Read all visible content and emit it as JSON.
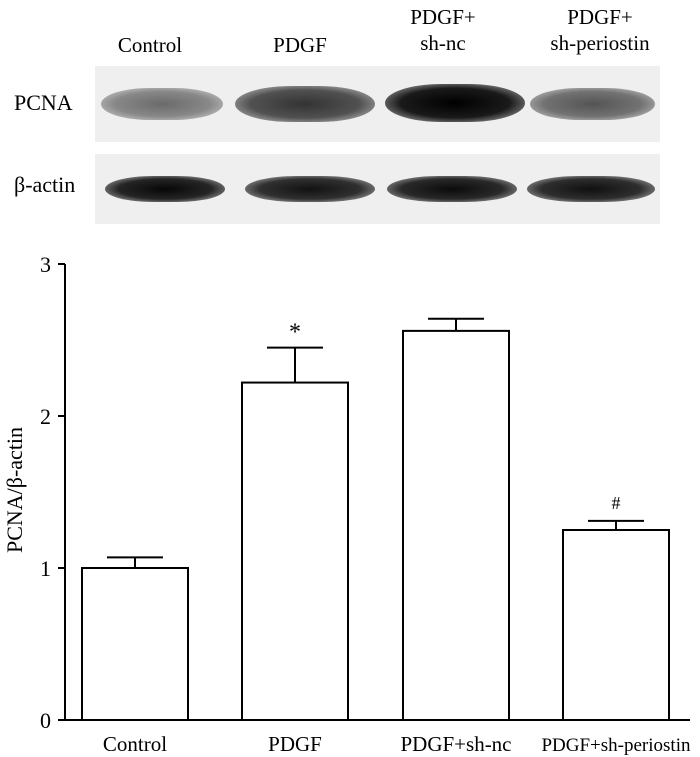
{
  "blot": {
    "lanes": [
      "Control",
      "PDGF",
      "PDGF+\nsh-nc",
      "PDGF+\nsh-periostin"
    ],
    "rows": [
      {
        "label": "PCNA",
        "intensity": [
          0.45,
          0.7,
          0.95,
          0.55
        ]
      },
      {
        "label": "β-actin",
        "intensity": [
          0.9,
          0.85,
          0.88,
          0.86
        ]
      }
    ]
  },
  "chart_data": {
    "type": "bar",
    "categories": [
      "Control",
      "PDGF",
      "PDGF+sh-nc",
      "PDGF+sh-periostin"
    ],
    "values": [
      1.0,
      2.22,
      2.56,
      1.25
    ],
    "errors": [
      0.07,
      0.23,
      0.08,
      0.06
    ],
    "annotations": [
      "",
      "*",
      "",
      "#"
    ],
    "ylabel": "PCNA/β-actin",
    "ylim": [
      0,
      3
    ],
    "yticks": [
      "0",
      "1",
      "2",
      "3"
    ],
    "grid": false
  }
}
